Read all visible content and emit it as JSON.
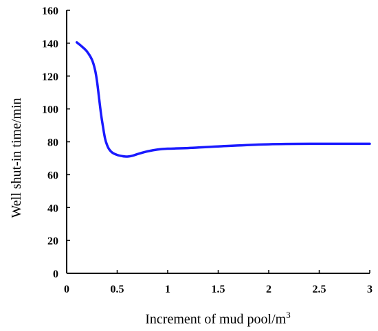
{
  "chart_data": {
    "type": "line",
    "title": "",
    "xlabel": "Increment of mud pool/m",
    "xlabel_superscript": "3",
    "ylabel": "Well shut-in time/min",
    "xlim": [
      0,
      3
    ],
    "ylim": [
      0,
      160
    ],
    "xticks": [
      "0",
      "0.5",
      "1",
      "1.5",
      "2",
      "2.5",
      "3"
    ],
    "xtick_values": [
      0,
      0.5,
      1,
      1.5,
      2,
      2.5,
      3
    ],
    "yticks": [
      "0",
      "20",
      "40",
      "60",
      "80",
      "100",
      "120",
      "140",
      "160"
    ],
    "ytick_values": [
      0,
      20,
      40,
      60,
      80,
      100,
      120,
      140,
      160
    ],
    "grid": false,
    "legend": "none",
    "series": [
      {
        "color": "#1a1aff",
        "x": [
          0.1,
          0.15,
          0.2,
          0.25,
          0.28,
          0.3,
          0.32,
          0.34,
          0.36,
          0.38,
          0.4,
          0.42,
          0.45,
          0.5,
          0.55,
          0.6,
          0.65,
          0.7,
          0.8,
          0.9,
          1.0,
          1.2,
          1.5,
          2.0,
          2.5,
          3.0
        ],
        "y": [
          140.5,
          138,
          135,
          130,
          124,
          117,
          107,
          97,
          89,
          82,
          78,
          75.5,
          73.5,
          72,
          71.3,
          71,
          71.5,
          72.5,
          74.2,
          75.3,
          75.8,
          76.2,
          77.2,
          78.5,
          78.8,
          78.8
        ]
      }
    ]
  }
}
